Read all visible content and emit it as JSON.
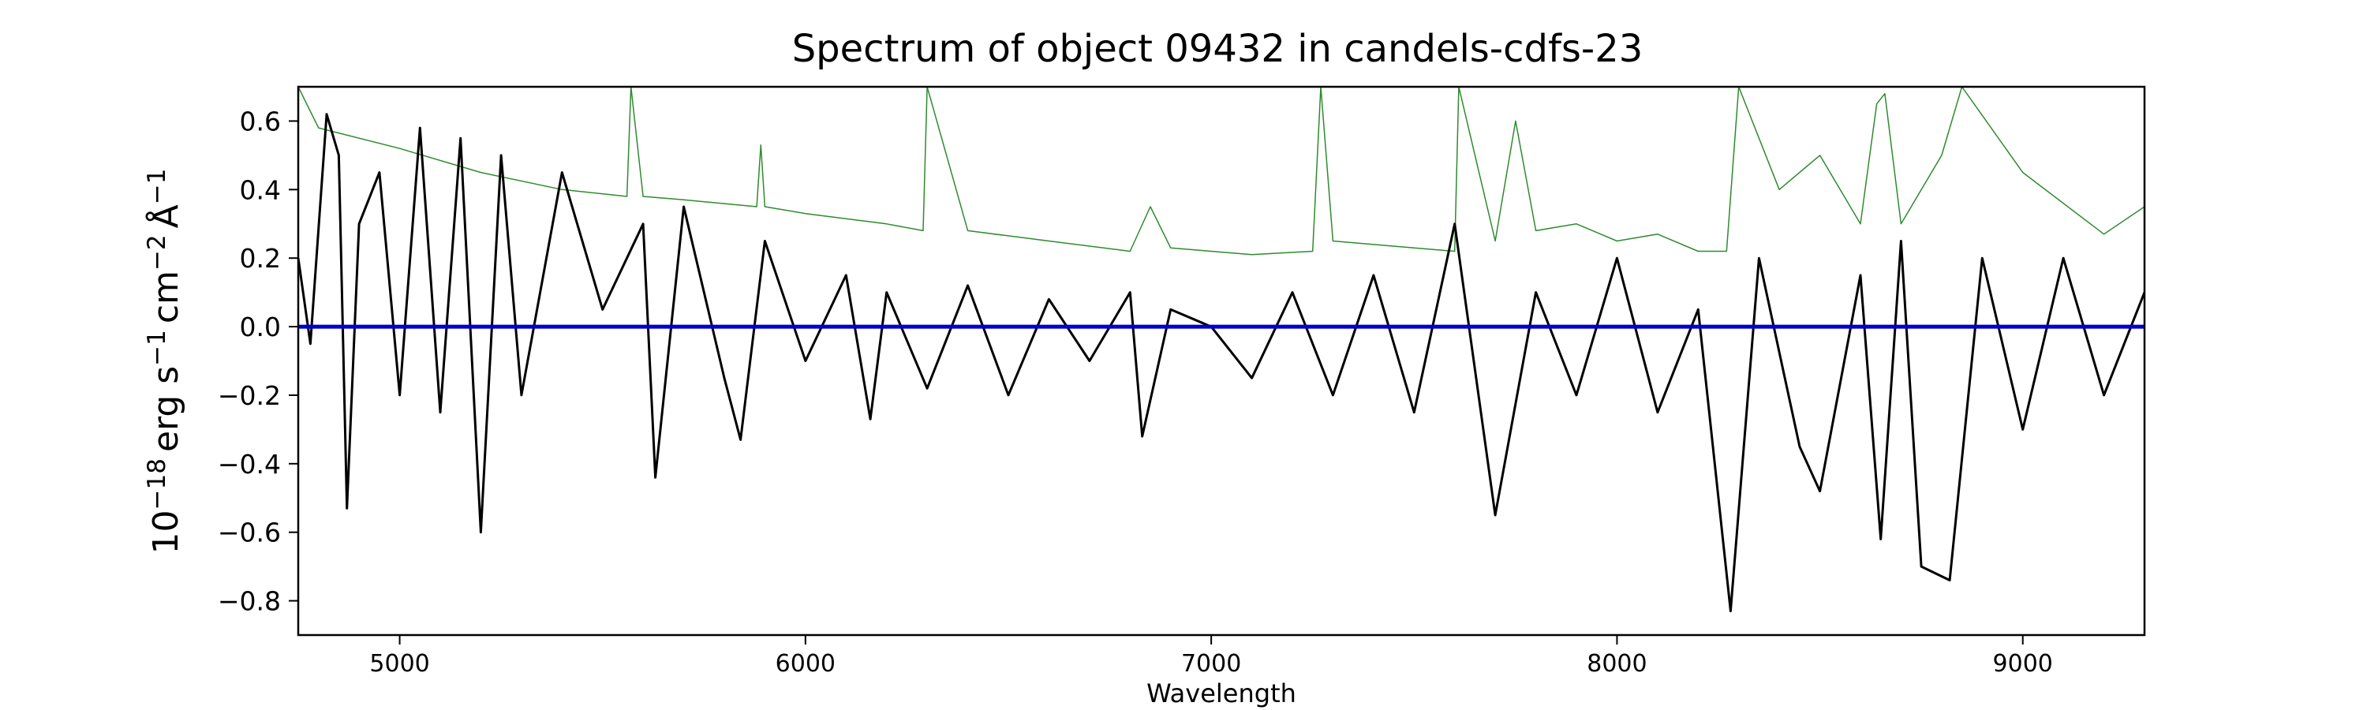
{
  "chart_data": {
    "type": "line",
    "title": "Spectrum of object 09432 in candels-cdfs-23",
    "xlabel": "Wavelength",
    "ylabel": {
      "base": "10",
      "base_exp": "−18",
      "unit1": "erg s",
      "unit1_exp": "−1",
      "unit2": "cm",
      "unit2_exp": "−2",
      "unit3": "Å",
      "unit3_exp": "−1"
    },
    "xlim": [
      4750,
      9300
    ],
    "ylim": [
      -0.9,
      0.7
    ],
    "x_ticks": [
      5000,
      6000,
      7000,
      8000,
      9000
    ],
    "x_tick_labels": [
      "5000",
      "6000",
      "7000",
      "8000",
      "9000"
    ],
    "y_ticks": [
      -0.8,
      -0.6,
      -0.4,
      -0.2,
      0.0,
      0.2,
      0.4,
      0.6
    ],
    "y_tick_labels": [
      "−0.8",
      "−0.6",
      "−0.4",
      "−0.2",
      "0.0",
      "0.2",
      "0.4",
      "0.6"
    ],
    "grid": false,
    "series": [
      {
        "role": "flux",
        "color": "#000000",
        "x": [
          4750,
          4780,
          4820,
          4850,
          4870,
          4900,
          4950,
          5000,
          5050,
          5100,
          5150,
          5200,
          5250,
          5300,
          5400,
          5500,
          5600,
          5630,
          5700,
          5800,
          5840,
          5900,
          6000,
          6100,
          6160,
          6200,
          6300,
          6400,
          6500,
          6600,
          6700,
          6800,
          6830,
          6900,
          7000,
          7100,
          7200,
          7300,
          7400,
          7500,
          7600,
          7700,
          7800,
          7900,
          8000,
          8100,
          8200,
          8280,
          8350,
          8450,
          8500,
          8600,
          8650,
          8700,
          8750,
          8820,
          8900,
          9000,
          9100,
          9200,
          9300
        ],
        "y": [
          0.2,
          -0.05,
          0.62,
          0.5,
          -0.53,
          0.3,
          0.45,
          -0.2,
          0.58,
          -0.25,
          0.55,
          -0.6,
          0.5,
          -0.2,
          0.45,
          0.05,
          0.3,
          -0.44,
          0.35,
          -0.15,
          -0.33,
          0.25,
          -0.1,
          0.15,
          -0.27,
          0.1,
          -0.18,
          0.12,
          -0.2,
          0.08,
          -0.1,
          0.1,
          -0.32,
          0.05,
          0.0,
          -0.15,
          0.1,
          -0.2,
          0.15,
          -0.25,
          0.3,
          -0.55,
          0.1,
          -0.2,
          0.2,
          -0.25,
          0.05,
          -0.83,
          0.2,
          -0.35,
          -0.48,
          0.15,
          -0.62,
          0.25,
          -0.7,
          -0.74,
          0.2,
          -0.3,
          0.2,
          -0.2,
          0.1
        ]
      },
      {
        "role": "error",
        "color": "#2e8b2e",
        "x": [
          4750,
          4800,
          5000,
          5200,
          5400,
          5560,
          5570,
          5600,
          5700,
          5880,
          5890,
          5900,
          6000,
          6200,
          6290,
          6300,
          6400,
          6600,
          6800,
          6850,
          6900,
          7000,
          7100,
          7250,
          7270,
          7300,
          7500,
          7600,
          7610,
          7700,
          7750,
          7800,
          7900,
          8000,
          8100,
          8200,
          8270,
          8300,
          8400,
          8500,
          8600,
          8640,
          8660,
          8700,
          8800,
          8850,
          9000,
          9200,
          9300
        ],
        "y": [
          0.7,
          0.58,
          0.52,
          0.45,
          0.4,
          0.38,
          0.7,
          0.38,
          0.37,
          0.35,
          0.53,
          0.35,
          0.33,
          0.3,
          0.28,
          0.7,
          0.28,
          0.25,
          0.22,
          0.35,
          0.23,
          0.22,
          0.21,
          0.22,
          0.7,
          0.25,
          0.23,
          0.22,
          0.7,
          0.25,
          0.6,
          0.28,
          0.3,
          0.25,
          0.27,
          0.22,
          0.22,
          0.7,
          0.4,
          0.5,
          0.3,
          0.65,
          0.68,
          0.3,
          0.5,
          0.7,
          0.45,
          0.27,
          0.35
        ]
      },
      {
        "role": "zero-line",
        "color": "#0000cc",
        "x": [
          4750,
          9300
        ],
        "y": [
          0.0,
          0.0
        ]
      }
    ]
  }
}
